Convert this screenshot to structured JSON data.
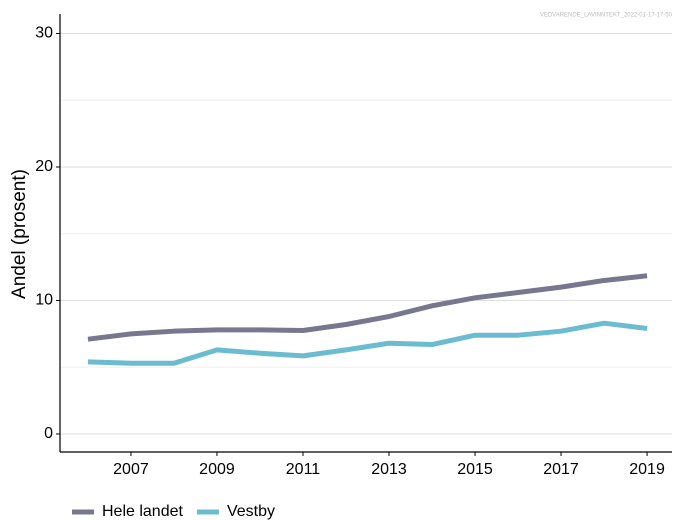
{
  "chart_data": {
    "type": "line",
    "watermark": "VEDVARENDE_LAVINNTEKT_2022-01-17-17-50",
    "y_label": "Andel (prosent)",
    "x": [
      2006,
      2007,
      2008,
      2009,
      2010,
      2011,
      2012,
      2013,
      2014,
      2015,
      2016,
      2017,
      2018,
      2019
    ],
    "series": [
      {
        "name": "Hele landet",
        "color": "#77778f",
        "values": [
          7.1,
          7.5,
          7.7,
          7.8,
          7.8,
          7.75,
          8.2,
          8.8,
          9.6,
          10.2,
          10.6,
          11.0,
          11.5,
          11.85
        ]
      },
      {
        "name": "Vestby",
        "color": "#6bbcd1",
        "values": [
          5.4,
          5.3,
          5.3,
          6.3,
          6.05,
          5.85,
          6.3,
          6.8,
          6.7,
          7.4,
          7.4,
          7.7,
          8.3,
          7.9
        ]
      }
    ],
    "xlim": [
      2005.35,
      2019.58
    ],
    "xticks": [
      2007,
      2009,
      2011,
      2013,
      2015,
      2017,
      2019
    ],
    "ylim": [
      -1.35,
      31.46
    ],
    "yticks": [
      0,
      10,
      20,
      30
    ],
    "minor_yticks": [
      5,
      15,
      25
    ],
    "grid": true,
    "legend": "bottom"
  }
}
